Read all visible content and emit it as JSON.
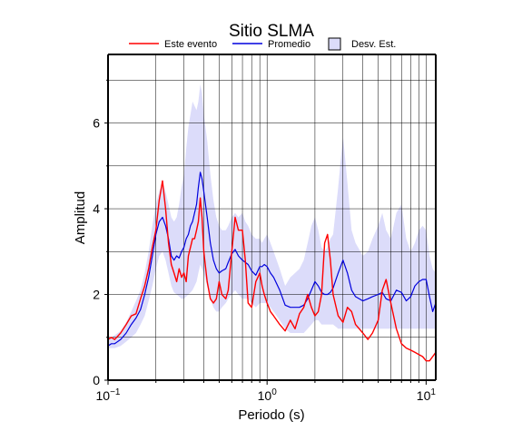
{
  "chart_data": {
    "type": "line",
    "title": "Sitio SLMA",
    "xlabel": "Periodo (s)",
    "ylabel": "Amplitud",
    "xscale": "log",
    "xlim": [
      0.1,
      11.5
    ],
    "ylim": [
      0,
      7.6
    ],
    "grid": true,
    "legend_position": "top",
    "x_ticks": [
      {
        "value": 0.1,
        "base": "10",
        "exp": "−1"
      },
      {
        "value": 1,
        "base": "10",
        "exp": "0"
      },
      {
        "value": 10,
        "base": "10",
        "exp": "1"
      }
    ],
    "y_ticks": [
      {
        "value": 0,
        "label": "0"
      },
      {
        "value": 2,
        "label": "2"
      },
      {
        "value": 4,
        "label": "4"
      },
      {
        "value": 6,
        "label": "6"
      }
    ],
    "legend": {
      "event_label": "Este evento",
      "mean_label": "Promedio",
      "std_label": "Desv. Est."
    },
    "colors": {
      "event": "#ff0000",
      "mean": "#0000dd",
      "band": "#dcdcfa",
      "band_edge": "#000000"
    },
    "series": [
      {
        "name": "Este evento",
        "x": [
          0.1,
          0.105,
          0.11,
          0.12,
          0.13,
          0.14,
          0.15,
          0.16,
          0.17,
          0.18,
          0.19,
          0.2,
          0.21,
          0.22,
          0.23,
          0.24,
          0.25,
          0.26,
          0.27,
          0.28,
          0.29,
          0.3,
          0.31,
          0.32,
          0.33,
          0.34,
          0.35,
          0.36,
          0.37,
          0.38,
          0.39,
          0.4,
          0.42,
          0.44,
          0.46,
          0.48,
          0.5,
          0.52,
          0.55,
          0.57,
          0.6,
          0.63,
          0.66,
          0.7,
          0.73,
          0.76,
          0.8,
          0.85,
          0.9,
          0.93,
          0.96,
          1.0,
          1.05,
          1.1,
          1.2,
          1.3,
          1.4,
          1.5,
          1.6,
          1.7,
          1.8,
          1.9,
          2.0,
          2.1,
          2.2,
          2.3,
          2.4,
          2.5,
          2.6,
          2.8,
          3.0,
          3.2,
          3.4,
          3.6,
          4.0,
          4.3,
          4.6,
          5.0,
          5.3,
          5.6,
          6.0,
          6.5,
          7.0,
          7.5,
          8.0,
          8.5,
          9.0,
          9.5,
          10.0,
          10.5,
          11.0,
          11.5
        ],
        "values": [
          0.95,
          1.0,
          0.95,
          1.1,
          1.3,
          1.5,
          1.55,
          1.9,
          2.2,
          2.6,
          3.1,
          3.5,
          4.2,
          4.65,
          4.0,
          3.2,
          2.7,
          2.5,
          2.3,
          2.6,
          2.4,
          2.5,
          2.3,
          2.9,
          3.1,
          3.3,
          3.3,
          3.5,
          3.7,
          4.25,
          3.8,
          3.0,
          2.3,
          1.9,
          1.8,
          1.9,
          2.3,
          2.0,
          1.9,
          2.1,
          3.0,
          3.8,
          3.5,
          3.5,
          2.8,
          1.8,
          1.7,
          2.3,
          2.5,
          2.2,
          2.0,
          1.8,
          1.6,
          1.5,
          1.3,
          1.15,
          1.4,
          1.2,
          1.55,
          1.7,
          2.0,
          1.7,
          1.5,
          1.6,
          2.0,
          3.2,
          3.4,
          2.8,
          2.0,
          1.5,
          1.35,
          1.7,
          1.6,
          1.3,
          1.1,
          0.95,
          1.1,
          1.4,
          2.1,
          2.35,
          1.8,
          1.2,
          0.85,
          0.75,
          0.7,
          0.65,
          0.6,
          0.55,
          0.45,
          0.45,
          0.55,
          0.65
        ]
      },
      {
        "name": "Promedio",
        "x": [
          0.1,
          0.105,
          0.11,
          0.12,
          0.13,
          0.14,
          0.15,
          0.16,
          0.17,
          0.18,
          0.19,
          0.2,
          0.21,
          0.22,
          0.23,
          0.24,
          0.25,
          0.26,
          0.27,
          0.28,
          0.29,
          0.3,
          0.31,
          0.32,
          0.33,
          0.34,
          0.35,
          0.36,
          0.37,
          0.38,
          0.39,
          0.4,
          0.42,
          0.44,
          0.46,
          0.48,
          0.5,
          0.52,
          0.55,
          0.57,
          0.6,
          0.63,
          0.66,
          0.7,
          0.73,
          0.76,
          0.8,
          0.85,
          0.9,
          0.93,
          0.96,
          1.0,
          1.05,
          1.1,
          1.2,
          1.3,
          1.4,
          1.5,
          1.6,
          1.7,
          1.8,
          1.9,
          2.0,
          2.1,
          2.2,
          2.3,
          2.4,
          2.5,
          2.6,
          2.8,
          3.0,
          3.2,
          3.4,
          3.6,
          4.0,
          4.3,
          4.6,
          5.0,
          5.3,
          5.6,
          6.0,
          6.5,
          7.0,
          7.5,
          8.0,
          8.5,
          9.0,
          9.5,
          10.0,
          10.5,
          11.0,
          11.5
        ],
        "values": [
          0.8,
          0.85,
          0.85,
          0.95,
          1.1,
          1.3,
          1.45,
          1.65,
          2.0,
          2.4,
          2.9,
          3.4,
          3.7,
          3.8,
          3.6,
          3.3,
          2.9,
          2.8,
          2.9,
          2.85,
          3.0,
          3.1,
          3.3,
          3.4,
          3.6,
          3.7,
          3.9,
          4.1,
          4.5,
          4.85,
          4.7,
          4.4,
          3.8,
          3.2,
          2.8,
          2.6,
          2.5,
          2.55,
          2.6,
          2.75,
          2.95,
          3.05,
          2.9,
          2.8,
          2.75,
          2.7,
          2.55,
          2.45,
          2.65,
          2.65,
          2.7,
          2.65,
          2.5,
          2.4,
          2.1,
          1.75,
          1.7,
          1.7,
          1.7,
          1.75,
          1.9,
          2.1,
          2.3,
          2.2,
          2.05,
          2.0,
          2.0,
          2.05,
          2.15,
          2.5,
          2.8,
          2.5,
          2.1,
          1.95,
          1.85,
          1.9,
          1.95,
          2.0,
          2.05,
          1.9,
          1.85,
          2.1,
          2.05,
          1.85,
          1.95,
          2.2,
          2.3,
          2.35,
          2.35,
          1.95,
          1.6,
          1.8
        ]
      },
      {
        "name": "Desv. Est.",
        "x": [
          0.1,
          0.105,
          0.11,
          0.12,
          0.13,
          0.14,
          0.15,
          0.16,
          0.17,
          0.18,
          0.19,
          0.2,
          0.21,
          0.22,
          0.23,
          0.24,
          0.25,
          0.26,
          0.27,
          0.28,
          0.29,
          0.3,
          0.31,
          0.32,
          0.33,
          0.34,
          0.35,
          0.36,
          0.37,
          0.38,
          0.39,
          0.4,
          0.42,
          0.44,
          0.46,
          0.48,
          0.5,
          0.52,
          0.55,
          0.57,
          0.6,
          0.63,
          0.66,
          0.7,
          0.73,
          0.76,
          0.8,
          0.85,
          0.9,
          0.93,
          0.96,
          1.0,
          1.05,
          1.1,
          1.2,
          1.3,
          1.4,
          1.5,
          1.6,
          1.7,
          1.8,
          1.9,
          2.0,
          2.1,
          2.2,
          2.3,
          2.4,
          2.5,
          2.6,
          2.8,
          3.0,
          3.2,
          3.4,
          3.6,
          4.0,
          4.3,
          4.6,
          5.0,
          5.3,
          5.6,
          6.0,
          6.5,
          7.0,
          7.5,
          8.0,
          8.5,
          9.0,
          9.5,
          10.0,
          10.5,
          11.0,
          11.5
        ],
        "upper": [
          1.0,
          1.0,
          1.05,
          1.15,
          1.35,
          1.6,
          1.85,
          2.1,
          2.5,
          3.0,
          3.6,
          4.1,
          4.4,
          4.6,
          4.4,
          4.1,
          3.8,
          3.7,
          3.8,
          4.1,
          4.5,
          4.8,
          5.4,
          5.9,
          6.2,
          6.5,
          6.4,
          6.3,
          6.5,
          6.9,
          6.7,
          6.2,
          5.6,
          4.8,
          4.2,
          3.8,
          3.6,
          3.5,
          3.5,
          3.6,
          3.8,
          3.9,
          3.8,
          3.9,
          3.7,
          3.6,
          3.4,
          3.3,
          3.3,
          3.2,
          3.3,
          3.4,
          3.2,
          3.0,
          2.6,
          2.2,
          2.4,
          2.5,
          2.6,
          2.8,
          3.2,
          3.6,
          3.8,
          3.5,
          3.1,
          3.0,
          3.1,
          3.3,
          3.4,
          4.5,
          5.7,
          4.6,
          3.5,
          3.2,
          2.9,
          3.0,
          3.3,
          3.6,
          3.9,
          3.5,
          3.3,
          3.9,
          4.1,
          3.3,
          3.0,
          3.2,
          3.5,
          3.6,
          3.5,
          2.9,
          2.6,
          2.5
        ],
        "lower": [
          0.75,
          0.75,
          0.75,
          0.8,
          0.9,
          1.0,
          1.1,
          1.3,
          1.5,
          1.85,
          2.2,
          2.6,
          2.9,
          3.0,
          2.8,
          2.5,
          2.2,
          2.05,
          2.0,
          1.95,
          1.9,
          1.9,
          1.95,
          2.0,
          2.05,
          2.1,
          2.2,
          2.3,
          2.5,
          2.7,
          2.6,
          2.5,
          2.2,
          1.9,
          1.7,
          1.6,
          1.6,
          1.7,
          1.8,
          1.9,
          2.0,
          2.1,
          2.0,
          1.9,
          1.9,
          1.9,
          1.8,
          1.7,
          1.8,
          1.8,
          1.8,
          1.8,
          1.7,
          1.6,
          1.4,
          1.2,
          1.1,
          1.1,
          1.1,
          1.1,
          1.2,
          1.3,
          1.4,
          1.4,
          1.3,
          1.3,
          1.3,
          1.3,
          1.3,
          1.2,
          1.2,
          1.2,
          1.2,
          1.2,
          1.2,
          1.2,
          1.2,
          1.2,
          1.2,
          1.2,
          1.2,
          1.2,
          1.2,
          1.2,
          1.2,
          1.2,
          1.2,
          1.2,
          1.2,
          1.2,
          1.2,
          1.2
        ]
      }
    ]
  }
}
